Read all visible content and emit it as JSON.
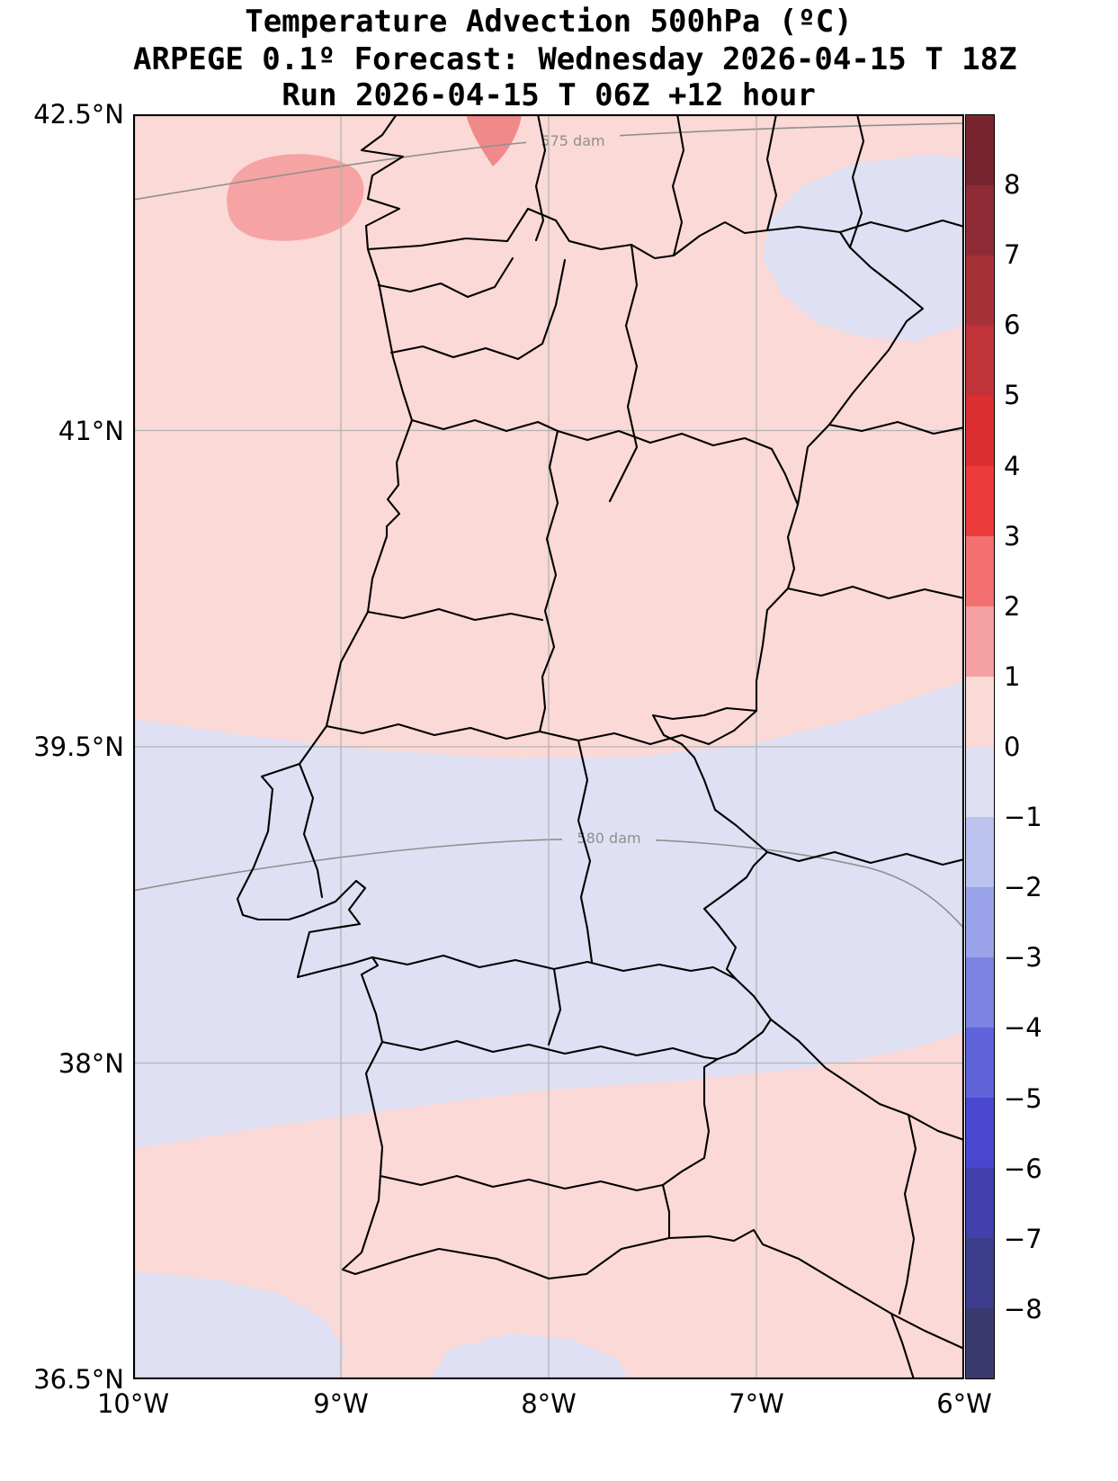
{
  "title": {
    "line1": "Temperature Advection  500hPa (ºC)",
    "line2": "ARPEGE 0.1º Forecast: Wednesday 2026-04-15 T 18Z",
    "line3": "Run 2026-04-15 T 06Z +12 hour"
  },
  "axes": {
    "lat_ticks": [
      "42.5°N",
      "41°N",
      "39.5°N",
      "38°N",
      "36.5°N"
    ],
    "lon_ticks": [
      "10°W",
      "9°W",
      "8°W",
      "7°W",
      "6°W"
    ]
  },
  "contours": [
    {
      "label": "575 dam"
    },
    {
      "label": "580 dam"
    }
  ],
  "colorbar": {
    "tick_labels": [
      "8",
      "7",
      "6",
      "5",
      "4",
      "3",
      "2",
      "1",
      "0",
      "−1",
      "−2",
      "−3",
      "−4",
      "−5",
      "−6",
      "−7",
      "−8"
    ],
    "segment_colors": [
      "#78242f",
      "#8f2b35",
      "#a63238",
      "#c03439",
      "#dd2f2f",
      "#ee3b3b",
      "#f27070",
      "#f5a0a0",
      "#fbd9d6",
      "#dfe0f3",
      "#bcc3ef",
      "#9aa3e9",
      "#7b84e2",
      "#5f63da",
      "#4a47cf",
      "#4140ad",
      "#3d3d8d",
      "#3a3a6e"
    ]
  },
  "colors": {
    "pos01": "#fbd9d6",
    "pos12": "#f5a3a3",
    "pos23": "#f08a8a",
    "neg01": "#dfe0f3",
    "grid": "#b3b3b3",
    "contour": "#8f8f8f",
    "boundary": "#000000"
  },
  "chart_data": {
    "type": "heatmap",
    "title": "Temperature Advection 500hPa (ºC)",
    "model": "ARPEGE 0.1º",
    "valid": "Wednesday 2026-04-15 T 18Z",
    "run": "2026-04-15 T 06Z +12 hour",
    "lat_range": [
      36.5,
      42.5
    ],
    "lon_range": [
      -10,
      -6
    ],
    "colorbar_levels": [
      8,
      7,
      6,
      5,
      4,
      3,
      2,
      1,
      0,
      -1,
      -2,
      -3,
      -4,
      -5,
      -6,
      -7,
      -8
    ],
    "geopotential_contours_dam": [
      575,
      580
    ],
    "regions": [
      {
        "value_range": "0 to 1",
        "area": "northern half of map and southern coastal strip"
      },
      {
        "value_range": "-1 to 0",
        "area": "central-southern band, top-right patch, bottom-left pockets"
      },
      {
        "value_range": "1 to 2",
        "area": "blob offshore northwest near 42.1N 8.6W"
      },
      {
        "value_range": "2 to 3",
        "area": "small blob at top edge near 7.7W"
      }
    ]
  }
}
